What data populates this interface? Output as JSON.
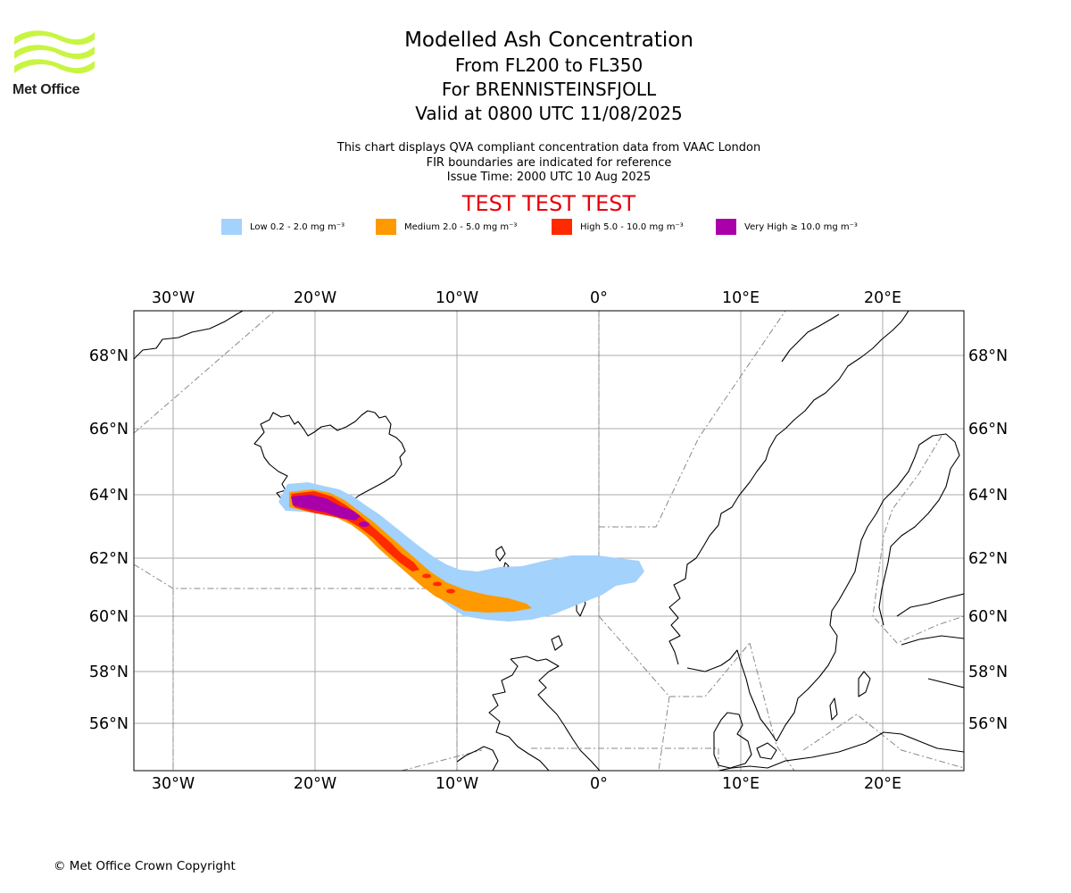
{
  "logo": {
    "text": "Met Office",
    "color": "#c8f542"
  },
  "title": {
    "main": "Modelled Ash Concentration",
    "levels": "From FL200 to FL350",
    "volcano": "For BRENNISTEINSFJOLL",
    "valid": "Valid at 0800 UTC 11/08/2025"
  },
  "notes": {
    "line1": "This chart displays QVA compliant concentration data from VAAC London",
    "line2": "FIR boundaries are indicated for reference",
    "line3": "Issue Time: 2000 UTC 10 Aug 2025"
  },
  "test_banner": "TEST TEST TEST",
  "legend": [
    {
      "label": "Low 0.2 - 2.0 mg m⁻³",
      "color": "#a3d2fc"
    },
    {
      "label": "Medium 2.0 - 5.0 mg m⁻³",
      "color": "#ff9900"
    },
    {
      "label": "High 5.0 - 10.0 mg m⁻³",
      "color": "#ff2a00"
    },
    {
      "label": "Very High ≥ 10.0 mg m⁻³",
      "color": "#aa00aa"
    }
  ],
  "map": {
    "lon_ticks": [
      "30°W",
      "20°W",
      "10°W",
      "0°",
      "10°E",
      "20°E"
    ],
    "lat_ticks": [
      "68°N",
      "66°N",
      "64°N",
      "62°N",
      "60°N",
      "58°N",
      "56°N"
    ],
    "grid_color": "#aaaaaa",
    "fir_color": "#888888"
  },
  "copyright": "© Met Office Crown Copyright"
}
